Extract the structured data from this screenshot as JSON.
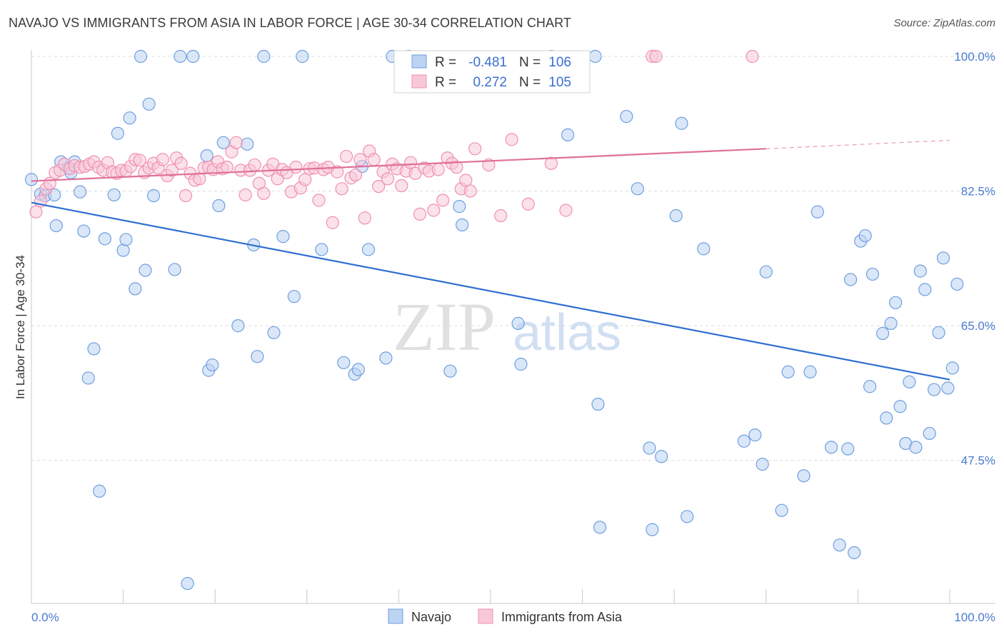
{
  "header": {
    "title": "NAVAJO VS IMMIGRANTS FROM ASIA IN LABOR FORCE | AGE 30-34 CORRELATION CHART",
    "source": "Source: ZipAtlas.com"
  },
  "chart_data": {
    "type": "scatter",
    "ylabel": "In Labor Force | Age 30-34",
    "xlim": [
      0,
      100
    ],
    "ylim": [
      29,
      100
    ],
    "x_tick_labels": [
      {
        "v": 0,
        "label": "0.0%"
      },
      {
        "v": 100,
        "label": "100.0%"
      }
    ],
    "y_ticks": [
      {
        "v": 47.5,
        "label": "47.5%"
      },
      {
        "v": 65.0,
        "label": "65.0%"
      },
      {
        "v": 82.5,
        "label": "82.5%"
      },
      {
        "v": 100.0,
        "label": "100.0%"
      }
    ],
    "grid": true,
    "watermark": {
      "zip": "ZIP",
      "atlas": "atlas"
    },
    "legend_position": "top-center",
    "series": [
      {
        "name": "Navajo",
        "color": "#6f9fe0",
        "fill": "#bcd3f3",
        "line_color": "#2f6fd0",
        "r_label": "R =",
        "r": "-0.481",
        "n_label": "N =",
        "n": "106",
        "trend": {
          "x0": 0,
          "y0": 81.0,
          "x1": 100,
          "y1": 58.0
        },
        "points": [
          [
            0,
            84.0
          ],
          [
            1,
            82.1
          ],
          [
            1.5,
            81.9
          ],
          [
            2.5,
            82.0
          ],
          [
            2.7,
            78.0
          ],
          [
            3.2,
            86.3
          ],
          [
            4.0,
            85.5
          ],
          [
            4.3,
            84.9
          ],
          [
            4.7,
            86.3
          ],
          [
            5.3,
            82.4
          ],
          [
            5.7,
            77.3
          ],
          [
            6.2,
            58.2
          ],
          [
            6.8,
            62.0
          ],
          [
            7.4,
            43.5
          ],
          [
            8.0,
            76.3
          ],
          [
            9.0,
            82.0
          ],
          [
            9.4,
            90.0
          ],
          [
            10.0,
            74.8
          ],
          [
            10.3,
            76.2
          ],
          [
            10.7,
            92.0
          ],
          [
            11.3,
            69.8
          ],
          [
            11.9,
            100.0
          ],
          [
            12.4,
            72.2
          ],
          [
            12.8,
            93.8
          ],
          [
            13.3,
            81.9
          ],
          [
            15.6,
            72.3
          ],
          [
            16.2,
            100.0
          ],
          [
            17.0,
            31.5
          ],
          [
            17.6,
            100.0
          ],
          [
            19.1,
            87.1
          ],
          [
            19.3,
            59.2
          ],
          [
            19.7,
            59.9
          ],
          [
            20.4,
            80.6
          ],
          [
            20.9,
            88.8
          ],
          [
            22.5,
            65.0
          ],
          [
            23.5,
            88.6
          ],
          [
            24.2,
            75.5
          ],
          [
            24.6,
            61.0
          ],
          [
            25.3,
            100.0
          ],
          [
            26.4,
            64.1
          ],
          [
            27.4,
            76.6
          ],
          [
            28.6,
            68.8
          ],
          [
            29.5,
            100.0
          ],
          [
            31.6,
            74.9
          ],
          [
            34.0,
            60.2
          ],
          [
            35.2,
            58.7
          ],
          [
            35.6,
            59.3
          ],
          [
            36.0,
            85.7
          ],
          [
            36.7,
            74.9
          ],
          [
            38.6,
            60.8
          ],
          [
            39.3,
            100.0
          ],
          [
            41.1,
            100.0
          ],
          [
            45.6,
            59.1
          ],
          [
            46.6,
            80.5
          ],
          [
            46.9,
            78.1
          ],
          [
            53.0,
            65.3
          ],
          [
            53.3,
            60.0
          ],
          [
            56.6,
            100.0
          ],
          [
            58.4,
            89.8
          ],
          [
            61.4,
            100.0
          ],
          [
            61.7,
            54.8
          ],
          [
            61.9,
            38.8
          ],
          [
            64.8,
            92.2
          ],
          [
            66.0,
            82.8
          ],
          [
            67.3,
            49.1
          ],
          [
            67.6,
            38.5
          ],
          [
            68.6,
            48.0
          ],
          [
            70.2,
            79.3
          ],
          [
            70.8,
            91.3
          ],
          [
            71.4,
            40.2
          ],
          [
            73.2,
            75.0
          ],
          [
            77.6,
            50.0
          ],
          [
            78.8,
            50.8
          ],
          [
            79.6,
            47.0
          ],
          [
            80.0,
            72.0
          ],
          [
            81.7,
            41.0
          ],
          [
            82.4,
            59.0
          ],
          [
            84.1,
            45.5
          ],
          [
            84.8,
            59.0
          ],
          [
            85.6,
            79.8
          ],
          [
            87.1,
            49.2
          ],
          [
            88.0,
            36.5
          ],
          [
            88.9,
            49.0
          ],
          [
            89.2,
            71.0
          ],
          [
            89.6,
            35.5
          ],
          [
            90.3,
            76.0
          ],
          [
            90.8,
            76.7
          ],
          [
            91.3,
            57.1
          ],
          [
            91.6,
            71.7
          ],
          [
            92.7,
            64.0
          ],
          [
            93.1,
            53.0
          ],
          [
            93.6,
            65.3
          ],
          [
            94.1,
            68.0
          ],
          [
            94.6,
            54.5
          ],
          [
            95.2,
            49.7
          ],
          [
            95.6,
            57.7
          ],
          [
            96.3,
            49.2
          ],
          [
            96.8,
            72.1
          ],
          [
            97.3,
            69.7
          ],
          [
            97.8,
            51.0
          ],
          [
            98.3,
            56.7
          ],
          [
            98.8,
            64.1
          ],
          [
            99.3,
            73.8
          ],
          [
            99.8,
            56.9
          ],
          [
            100.3,
            59.5
          ],
          [
            100.8,
            70.4
          ]
        ]
      },
      {
        "name": "Immigrants from Asia",
        "color": "#f090b0",
        "fill": "#f8c8d8",
        "line_color": "#e0709a",
        "r_label": "R =",
        "r": "0.272",
        "n_label": "N =",
        "n": "105",
        "trend": {
          "x0": 0,
          "y0": 83.8,
          "x1": 80,
          "y1": 88.0
        },
        "trend_dash": {
          "x0": 80,
          "y0": 88.0,
          "x1": 100,
          "y1": 89.1
        },
        "points": [
          [
            0.5,
            79.8
          ],
          [
            1.0,
            81.2
          ],
          [
            1.6,
            82.8
          ],
          [
            2.0,
            83.5
          ],
          [
            2.6,
            84.9
          ],
          [
            3.1,
            85.2
          ],
          [
            3.6,
            86.0
          ],
          [
            4.2,
            85.4
          ],
          [
            4.7,
            85.8
          ],
          [
            5.3,
            85.6
          ],
          [
            5.8,
            85.7
          ],
          [
            6.3,
            86.0
          ],
          [
            6.8,
            86.3
          ],
          [
            7.3,
            85.6
          ],
          [
            7.8,
            85.2
          ],
          [
            8.3,
            86.2
          ],
          [
            8.8,
            85.0
          ],
          [
            9.3,
            84.8
          ],
          [
            9.8,
            85.2
          ],
          [
            10.3,
            85.1
          ],
          [
            10.8,
            85.7
          ],
          [
            11.3,
            86.6
          ],
          [
            11.8,
            86.5
          ],
          [
            12.3,
            84.9
          ],
          [
            12.8,
            85.5
          ],
          [
            13.3,
            86.1
          ],
          [
            13.8,
            85.5
          ],
          [
            14.3,
            86.6
          ],
          [
            14.8,
            84.5
          ],
          [
            15.3,
            85.2
          ],
          [
            15.8,
            86.8
          ],
          [
            16.3,
            86.1
          ],
          [
            16.8,
            81.9
          ],
          [
            17.3,
            84.8
          ],
          [
            17.8,
            83.9
          ],
          [
            18.3,
            84.1
          ],
          [
            18.8,
            85.5
          ],
          [
            19.3,
            85.6
          ],
          [
            19.8,
            85.3
          ],
          [
            20.3,
            86.3
          ],
          [
            20.8,
            85.4
          ],
          [
            21.3,
            85.6
          ],
          [
            21.8,
            87.6
          ],
          [
            22.3,
            88.8
          ],
          [
            22.8,
            85.2
          ],
          [
            23.3,
            82.0
          ],
          [
            23.8,
            85.2
          ],
          [
            24.3,
            85.9
          ],
          [
            24.8,
            83.5
          ],
          [
            25.3,
            82.2
          ],
          [
            25.8,
            85.2
          ],
          [
            26.3,
            86.0
          ],
          [
            26.8,
            84.1
          ],
          [
            27.3,
            85.3
          ],
          [
            27.8,
            84.9
          ],
          [
            28.3,
            82.4
          ],
          [
            28.8,
            85.6
          ],
          [
            29.3,
            82.9
          ],
          [
            29.8,
            84.0
          ],
          [
            30.3,
            85.4
          ],
          [
            30.8,
            85.5
          ],
          [
            31.3,
            81.3
          ],
          [
            31.8,
            85.3
          ],
          [
            32.3,
            85.6
          ],
          [
            32.8,
            78.4
          ],
          [
            33.3,
            85.0
          ],
          [
            33.8,
            82.8
          ],
          [
            34.3,
            87.0
          ],
          [
            34.8,
            84.2
          ],
          [
            35.3,
            84.6
          ],
          [
            35.8,
            86.6
          ],
          [
            36.3,
            79.0
          ],
          [
            36.8,
            87.7
          ],
          [
            37.3,
            86.6
          ],
          [
            37.8,
            83.1
          ],
          [
            38.3,
            85.0
          ],
          [
            38.8,
            84.1
          ],
          [
            39.3,
            86.0
          ],
          [
            39.8,
            85.4
          ],
          [
            40.3,
            83.2
          ],
          [
            40.8,
            85.1
          ],
          [
            41.3,
            86.2
          ],
          [
            41.8,
            84.8
          ],
          [
            42.3,
            79.5
          ],
          [
            42.8,
            85.5
          ],
          [
            43.3,
            85.1
          ],
          [
            43.8,
            80.0
          ],
          [
            44.3,
            85.3
          ],
          [
            44.8,
            81.3
          ],
          [
            45.3,
            86.8
          ],
          [
            45.8,
            86.1
          ],
          [
            46.3,
            85.6
          ],
          [
            46.8,
            82.8
          ],
          [
            47.3,
            83.9
          ],
          [
            47.8,
            82.5
          ],
          [
            48.3,
            88.0
          ],
          [
            49.8,
            85.9
          ],
          [
            51.1,
            79.3
          ],
          [
            52.3,
            89.2
          ],
          [
            54.1,
            80.8
          ],
          [
            56.6,
            86.1
          ],
          [
            58.2,
            80.0
          ],
          [
            67.6,
            100.0
          ],
          [
            68.0,
            100.0
          ],
          [
            78.5,
            100.0
          ]
        ]
      }
    ]
  }
}
